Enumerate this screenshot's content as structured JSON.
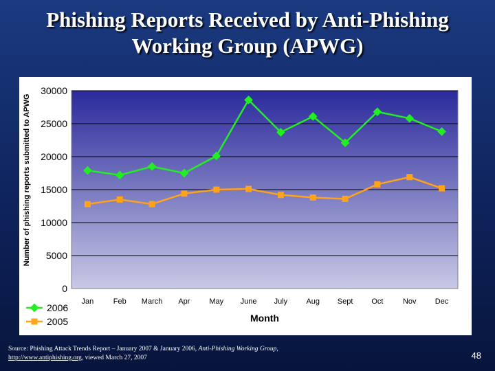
{
  "slide": {
    "title_line1": "Phishing Reports Received by Anti-Phishing",
    "title_line2": "Working Group (APWG)",
    "source_prefix": "Source: Phishing Attack Trends Report – January 2007 & January 2006, ",
    "source_org": "Anti-Phishing Working Group",
    "source_comma": ",",
    "source_link": "http://www.antiphishing.org",
    "source_suffix": ", viewed March 27, 2007",
    "page_number": "48"
  },
  "chart_data": {
    "type": "line",
    "title": "",
    "xlabel": "Month",
    "ylabel": "Number of phishing reports submitted to APWG",
    "categories": [
      "Jan",
      "Feb",
      "March",
      "Apr",
      "May",
      "June",
      "July",
      "Aug",
      "Sept",
      "Oct",
      "Nov",
      "Dec"
    ],
    "ylim": [
      0,
      30000
    ],
    "yticks": [
      "0",
      "5000",
      "10000",
      "15000",
      "20000",
      "25000",
      "30000"
    ],
    "grid": true,
    "legend_position": "bottom-left",
    "series": [
      {
        "name": "2006",
        "color": "#22ee22",
        "marker": "diamond",
        "values": [
          17900,
          17200,
          18500,
          17500,
          20100,
          28600,
          23700,
          26100,
          22100,
          26800,
          25800,
          23800
        ]
      },
      {
        "name": "2005",
        "color": "#ffa31a",
        "marker": "square",
        "values": [
          12800,
          13500,
          12800,
          14400,
          15000,
          15100,
          14200,
          13800,
          13600,
          15800,
          16900,
          15200
        ]
      }
    ],
    "colors": {
      "plot_top": "#2b2a9c",
      "plot_bottom": "#c8c8e6",
      "gridline": "#000000"
    }
  }
}
